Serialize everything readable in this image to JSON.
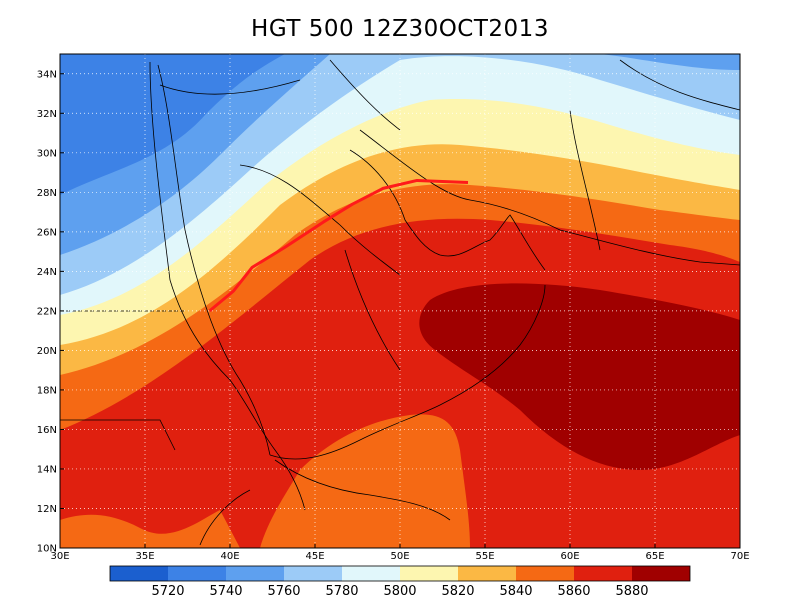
{
  "title": "HGT 500 12Z30OCT2013",
  "map": {
    "lon_range": [
      30,
      70
    ],
    "lat_range": [
      10,
      35
    ],
    "lon_ticks": [
      "30E",
      "35E",
      "40E",
      "45E",
      "50E",
      "55E",
      "60E",
      "65E",
      "70E"
    ],
    "lat_ticks": [
      "10N",
      "12N",
      "14N",
      "16N",
      "18N",
      "20N",
      "22N",
      "24N",
      "26N",
      "28N",
      "30N",
      "32N",
      "34N"
    ],
    "gridlines": true,
    "trough_line_color": "#ff1a1a"
  },
  "colorbar": {
    "labels": [
      "5720",
      "5740",
      "5760",
      "5780",
      "5800",
      "5820",
      "5840",
      "5860",
      "5880"
    ],
    "colors": [
      "#1b5fcf",
      "#3d82e6",
      "#5ea0ef",
      "#9ccbf7",
      "#e1f7fb",
      "#fdf6b0",
      "#fbb844",
      "#f56914",
      "#e0200f",
      "#a00000"
    ]
  },
  "chart_data": {
    "type": "heatmap",
    "title": "HGT 500 12Z30OCT2013",
    "xlabel": "",
    "ylabel": "",
    "xlim": [
      30,
      70
    ],
    "ylim": [
      10,
      35
    ],
    "contour_levels": [
      5720,
      5740,
      5760,
      5780,
      5800,
      5820,
      5840,
      5860,
      5880
    ],
    "fill_colors": [
      "#1b5fcf",
      "#3d82e6",
      "#5ea0ef",
      "#9ccbf7",
      "#e1f7fb",
      "#fdf6b0",
      "#fbb844",
      "#f56914",
      "#e0200f",
      "#a00000"
    ],
    "x_ticks": [
      30,
      35,
      40,
      45,
      50,
      55,
      60,
      65,
      70
    ],
    "y_ticks": [
      10,
      12,
      14,
      16,
      18,
      20,
      22,
      24,
      26,
      28,
      30,
      32,
      34
    ],
    "highlighted_line": {
      "color": "#ff1a1a",
      "points": [
        [
          38.8,
          22.0
        ],
        [
          40.2,
          23.0
        ],
        [
          41.3,
          24.2
        ],
        [
          43.2,
          25.2
        ],
        [
          45.5,
          26.5
        ],
        [
          47.2,
          27.4
        ],
        [
          49.0,
          28.2
        ],
        [
          51.0,
          28.6
        ],
        [
          54.0,
          28.5
        ]
      ]
    }
  }
}
